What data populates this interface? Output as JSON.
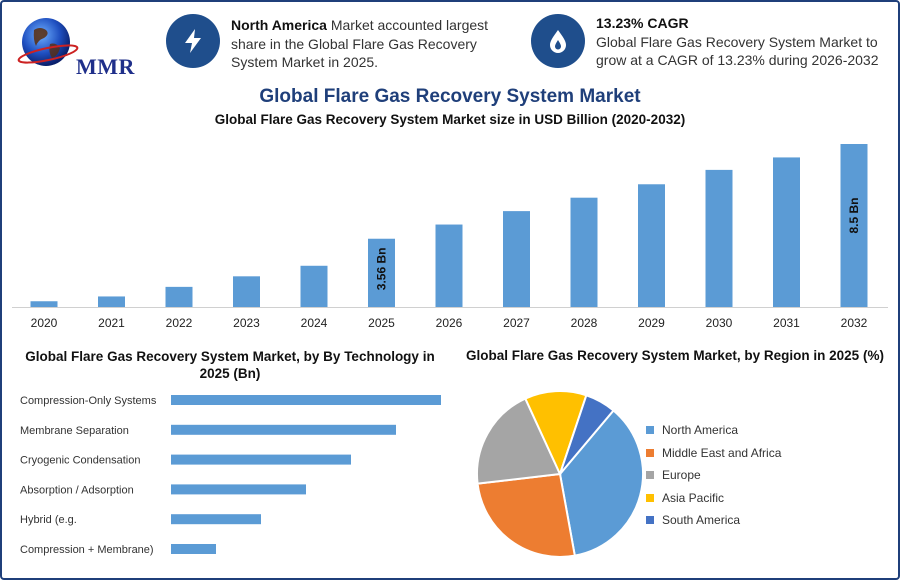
{
  "logo": {
    "text": "MMR"
  },
  "info_cards": [
    {
      "icon": "lightning-bolt-icon",
      "bold": "North America",
      "text": " Market accounted largest share in the Global Flare Gas Recovery System Market in 2025."
    },
    {
      "icon": "flame-drop-icon",
      "bold": "13.23% CAGR",
      "text": "Global Flare Gas Recovery System Market to grow at a CAGR of 13.23% during 2026-2032"
    }
  ],
  "title": "Global Flare Gas Recovery System Market",
  "subtitle": "Global Flare Gas Recovery System Market size in USD Billion (2020-2032)",
  "colors": {
    "bar": "#5b9bd5",
    "title": "#1f3f7a",
    "icon_bg": "#1f4e8c",
    "pie": [
      "#5b9bd5",
      "#ed7d31",
      "#a5a5a5",
      "#ffc000",
      "#4472c4"
    ]
  },
  "chart_data": [
    {
      "type": "bar",
      "title": "Global Flare Gas Recovery System Market size in USD Billion (2020-2032)",
      "categories": [
        "2020",
        "2021",
        "2022",
        "2023",
        "2024",
        "2025",
        "2026",
        "2027",
        "2028",
        "2029",
        "2030",
        "2031",
        "2032"
      ],
      "values": [
        0.3,
        0.55,
        1.05,
        1.6,
        2.15,
        3.56,
        4.3,
        5.0,
        5.7,
        6.4,
        7.15,
        7.8,
        8.5
      ],
      "data_labels": [
        {
          "index": 5,
          "text": "3.56 Bn"
        },
        {
          "index": 12,
          "text": "8.5 Bn"
        }
      ],
      "ylim": [
        0,
        8.5
      ],
      "grid": false
    },
    {
      "type": "bar",
      "orientation": "horizontal",
      "title": "Global Flare Gas Recovery System Market, by By Technology in 2025 (Bn)",
      "categories": [
        "Compression-Only Systems",
        "Membrane Separation",
        "Cryogenic Condensation",
        "Absorption / Adsorption",
        "Hybrid (e.g.",
        "Compression + Membrane)"
      ],
      "values": [
        6,
        5,
        4,
        3,
        2,
        1
      ],
      "grid": false
    },
    {
      "type": "pie",
      "title": "Global Flare Gas Recovery System Market, by Region in 2025 (%)",
      "labels": [
        "North America",
        "Middle East and Africa",
        "Europe",
        "Asia Pacific",
        "South America"
      ],
      "values": [
        36,
        26,
        20,
        12,
        6
      ],
      "legend_position": "right"
    }
  ]
}
